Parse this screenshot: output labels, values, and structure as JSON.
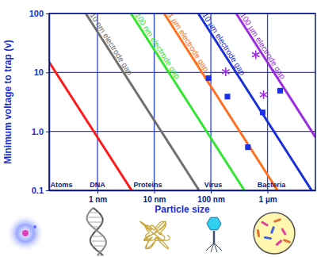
{
  "chart_data": {
    "type": "line",
    "xlabel": "Particle size",
    "ylabel": "Minimum voltage to trap (v)",
    "log": true,
    "grid": true,
    "xlim": [
      0.14,
      7000
    ],
    "ylim": [
      0.1,
      100
    ],
    "xticks": [
      {
        "value": 1,
        "label": "1 nm"
      },
      {
        "value": 10,
        "label": "10 nm"
      },
      {
        "value": 100,
        "label": "100 nm"
      },
      {
        "value": 1000,
        "label": "1 µm"
      }
    ],
    "yticks": [
      0.1,
      {
        "value": 1,
        "label": "1.0"
      },
      10,
      100
    ],
    "series": [
      {
        "name": null,
        "type": "line",
        "color": "#ff1a1a",
        "x": [
          0.14,
          4
        ],
        "values": [
          15,
          0.1
        ]
      },
      {
        "name": "10 nm electrode gap",
        "type": "line",
        "color": "#707070",
        "x": [
          0.62,
          62
        ],
        "values": [
          100,
          0.1
        ]
      },
      {
        "name": "100 nm electrode gap",
        "type": "line",
        "color": "#33e633",
        "x": [
          3.9,
          390
        ],
        "values": [
          100,
          0.1
        ]
      },
      {
        "name": "1 µm electrode gap",
        "type": "line",
        "color": "#ff7020",
        "x": [
          15,
          1500
        ],
        "values": [
          100,
          0.1
        ]
      },
      {
        "name": "10 µm electrode gap",
        "type": "line",
        "color": "#1a2fd6",
        "x": [
          60,
          6000
        ],
        "values": [
          100,
          0.1
        ]
      },
      {
        "name": "100 µm electrode gap",
        "type": "line",
        "color": "#9b2fe0",
        "x": [
          280,
          7000
        ],
        "values": [
          100,
          0.8
        ]
      },
      {
        "name": null,
        "type": "scatter",
        "marker": "square",
        "color": "#1a2fe6",
        "x": [
          91,
          196,
          450,
          820,
          1670
        ],
        "values": [
          8,
          3.9,
          0.54,
          2.1,
          4.9
        ]
      },
      {
        "name": null,
        "type": "scatter",
        "marker": "asterisk",
        "color": "#9b2fe0",
        "x": [
          183,
          620,
          850
        ],
        "values": [
          10.3,
          20,
          4.2
        ]
      }
    ],
    "annotations": [
      {
        "text": "Atoms",
        "x": 0.23
      },
      {
        "text": "DNA",
        "x": 1
      },
      {
        "text": "Proteins",
        "x": 7.7
      },
      {
        "text": "Virus",
        "x": 110
      },
      {
        "text": "Bacteria",
        "x": 1170
      }
    ]
  }
}
